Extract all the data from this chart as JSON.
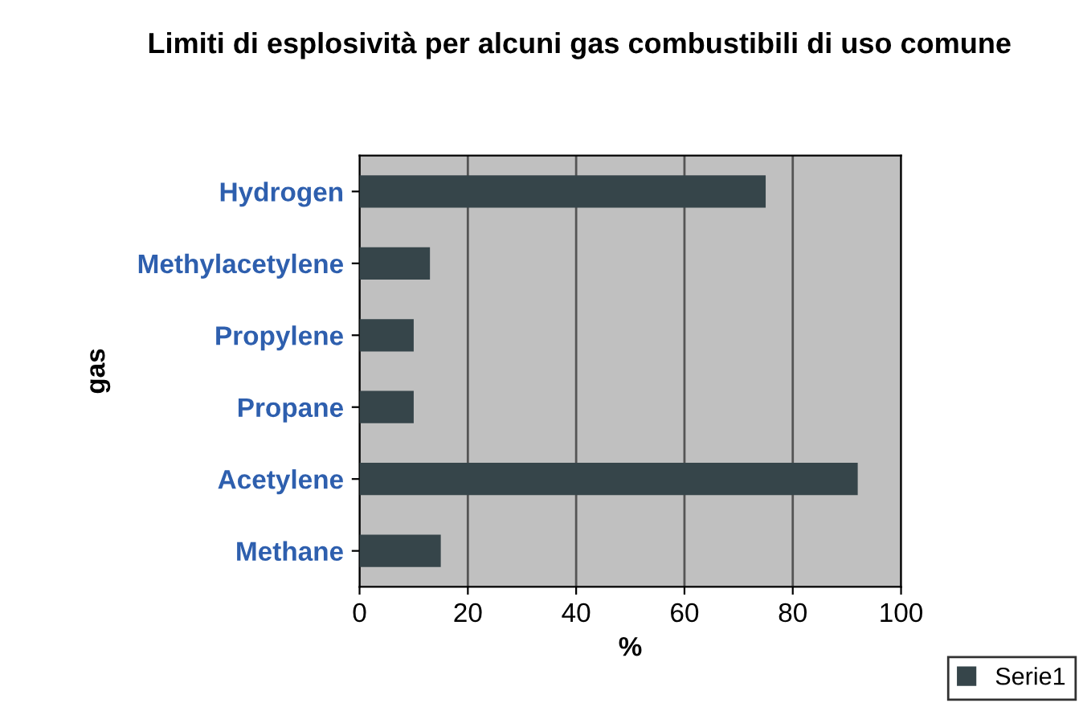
{
  "chart_data": {
    "type": "bar",
    "orientation": "horizontal",
    "title": "Limiti di esplosività per alcuni gas combustibili di uso comune",
    "xlabel": "%",
    "ylabel": "gas",
    "categories": [
      "Hydrogen",
      "Methylacetylene",
      "Propylene",
      "Propane",
      "Acetylene",
      "Methane"
    ],
    "series": [
      {
        "name": "Serie1",
        "color": "#36454a",
        "values": [
          75,
          13,
          10,
          10,
          92,
          15
        ]
      }
    ],
    "xlim": [
      0,
      100
    ],
    "xticks": [
      0,
      20,
      40,
      60,
      80,
      100
    ],
    "grid": "x",
    "legend": "bottom right"
  }
}
